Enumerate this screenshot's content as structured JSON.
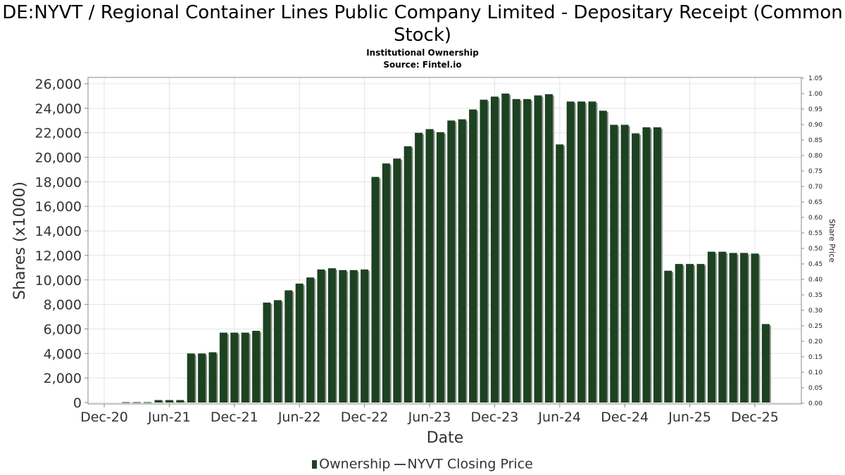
{
  "chart_data": {
    "type": "bar",
    "title": "DE:NYVT / Regional Container Lines Public Company Limited - Depositary Receipt (Common Stock)",
    "subtitle_1": "Institutional Ownership",
    "subtitle_2": "Source: Fintel.io",
    "xlabel": "Date",
    "ylabel": "Shares (x1000)",
    "y2label": "Share Price",
    "ylim": [
      0,
      26500
    ],
    "y2lim": [
      0,
      1.05
    ],
    "y_ticks": [
      "0",
      "2,000",
      "4,000",
      "6,000",
      "8,000",
      "10,000",
      "12,000",
      "14,000",
      "16,000",
      "18,000",
      "20,000",
      "22,000",
      "24,000",
      "26,000"
    ],
    "y2_ticks": [
      "0.00",
      "0.05",
      "0.10",
      "0.15",
      "0.20",
      "0.25",
      "0.30",
      "0.35",
      "0.40",
      "0.45",
      "0.50",
      "0.55",
      "0.60",
      "0.65",
      "0.70",
      "0.75",
      "0.80",
      "0.85",
      "0.90",
      "0.95",
      "1.00",
      "1.05"
    ],
    "x_ticks": [
      "Dec-20",
      "Jun-21",
      "Dec-21",
      "Jun-22",
      "Dec-22",
      "Jun-23",
      "Dec-23",
      "Jun-24",
      "Dec-24",
      "Jun-25",
      "Dec-25"
    ],
    "x_tick_month_index": [
      0,
      6,
      12,
      18,
      24,
      30,
      36,
      42,
      48,
      54,
      60
    ],
    "series": [
      {
        "name": "Ownership",
        "month_index": [
          2,
          3,
          4,
          5,
          6,
          7,
          8,
          9,
          10,
          11,
          12,
          13,
          14,
          15,
          16,
          17,
          18,
          19,
          20,
          21,
          22,
          23,
          24,
          25,
          26,
          27,
          28,
          29,
          30,
          31,
          32,
          33,
          34,
          35,
          36,
          37,
          38,
          39,
          40,
          41,
          42,
          43,
          44,
          45,
          46,
          47,
          48,
          49,
          50,
          51,
          52,
          53,
          54,
          55,
          56,
          57,
          58,
          59,
          60,
          61
        ],
        "values": [
          30,
          30,
          30,
          200,
          200,
          200,
          4000,
          4000,
          4100,
          5700,
          5700,
          5700,
          5850,
          8150,
          8350,
          9150,
          9700,
          10200,
          10850,
          10950,
          10800,
          10800,
          10850,
          18400,
          19500,
          19900,
          20900,
          22000,
          22300,
          22050,
          23000,
          23100,
          23900,
          24700,
          24950,
          25200,
          24750,
          24750,
          25050,
          25150,
          21050,
          24550,
          24550,
          24550,
          23800,
          22650,
          22650,
          21950,
          22450,
          22450,
          10750,
          11300,
          11300,
          11300,
          12300,
          12300,
          12200,
          12200,
          12150,
          6400
        ]
      },
      {
        "name": "NYVT Closing Price",
        "values": []
      }
    ],
    "legend": [
      "Ownership",
      "NYVT Closing Price"
    ],
    "colors": {
      "bar": "#1d4221",
      "bar_shadow": "#8a958b",
      "grid": "#e3e3e3"
    }
  }
}
